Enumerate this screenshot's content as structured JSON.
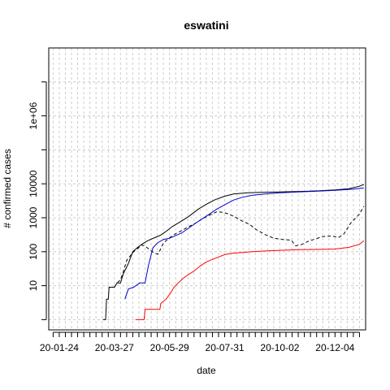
{
  "chart_data": {
    "type": "line",
    "title": "eswatini",
    "xlabel": "date",
    "ylabel": "# confirmed cases",
    "y_scale": "log",
    "ylim": [
      0.5,
      100000000
    ],
    "xlim": [
      "2020-01-12",
      "2021-01-08"
    ],
    "x_tick_labels": [
      "20-01-24",
      "20-03-27",
      "20-05-29",
      "20-07-31",
      "20-10-02",
      "20-12-04"
    ],
    "y_tick_labels": [
      "10",
      "100",
      "1000",
      "10000",
      "1e+06"
    ],
    "grid": true,
    "legend": "none",
    "series": [
      {
        "color": "#000000",
        "dash": "solid",
        "points": [
          [
            "2020-03-14",
            1
          ],
          [
            "2020-03-17",
            1
          ],
          [
            "2020-03-18",
            4
          ],
          [
            "2020-03-20",
            4
          ],
          [
            "2020-03-21",
            9
          ],
          [
            "2020-03-27",
            9
          ],
          [
            "2020-03-30",
            12
          ],
          [
            "2020-04-03",
            12
          ],
          [
            "2020-04-06",
            22
          ],
          [
            "2020-04-12",
            45
          ],
          [
            "2020-04-17",
            100
          ],
          [
            "2020-04-22",
            130
          ],
          [
            "2020-04-28",
            170
          ],
          [
            "2020-05-04",
            210
          ],
          [
            "2020-05-12",
            260
          ],
          [
            "2020-05-18",
            300
          ],
          [
            "2020-05-24",
            380
          ],
          [
            "2020-06-01",
            550
          ],
          [
            "2020-06-10",
            750
          ],
          [
            "2020-06-20",
            1100
          ],
          [
            "2020-07-01",
            1800
          ],
          [
            "2020-07-10",
            2500
          ],
          [
            "2020-07-20",
            3400
          ],
          [
            "2020-07-31",
            4300
          ],
          [
            "2020-08-10",
            5000
          ],
          [
            "2020-08-25",
            5400
          ],
          [
            "2020-09-10",
            5600
          ],
          [
            "2020-10-01",
            5750
          ],
          [
            "2020-10-25",
            5950
          ],
          [
            "2020-11-15",
            6200
          ],
          [
            "2020-12-04",
            6600
          ],
          [
            "2020-12-20",
            7200
          ],
          [
            "2021-01-01",
            8500
          ],
          [
            "2021-01-06",
            9500
          ]
        ]
      },
      {
        "color": "#000000",
        "dash": "dashed",
        "points": [
          [
            "2020-03-27",
            9
          ],
          [
            "2020-03-30",
            12
          ],
          [
            "2020-04-03",
            15
          ],
          [
            "2020-04-06",
            25
          ],
          [
            "2020-04-10",
            55
          ],
          [
            "2020-04-14",
            75
          ],
          [
            "2020-04-18",
            100
          ],
          [
            "2020-04-22",
            120
          ],
          [
            "2020-04-27",
            160
          ],
          [
            "2020-05-02",
            140
          ],
          [
            "2020-05-07",
            110
          ],
          [
            "2020-05-12",
            90
          ],
          [
            "2020-05-16",
            85
          ],
          [
            "2020-05-22",
            180
          ],
          [
            "2020-05-29",
            260
          ],
          [
            "2020-06-05",
            340
          ],
          [
            "2020-06-12",
            420
          ],
          [
            "2020-06-20",
            550
          ],
          [
            "2020-06-28",
            700
          ],
          [
            "2020-07-06",
            950
          ],
          [
            "2020-07-14",
            1200
          ],
          [
            "2020-07-22",
            1500
          ],
          [
            "2020-07-29",
            1450
          ],
          [
            "2020-08-04",
            1300
          ],
          [
            "2020-08-12",
            1050
          ],
          [
            "2020-08-20",
            800
          ],
          [
            "2020-08-28",
            650
          ],
          [
            "2020-09-05",
            450
          ],
          [
            "2020-09-15",
            320
          ],
          [
            "2020-09-25",
            250
          ],
          [
            "2020-10-05",
            230
          ],
          [
            "2020-10-15",
            220
          ],
          [
            "2020-10-20",
            150
          ],
          [
            "2020-10-26",
            160
          ],
          [
            "2020-11-03",
            200
          ],
          [
            "2020-11-12",
            240
          ],
          [
            "2020-11-20",
            280
          ],
          [
            "2020-12-01",
            290
          ],
          [
            "2020-12-08",
            260
          ],
          [
            "2020-12-14",
            330
          ],
          [
            "2020-12-22",
            700
          ],
          [
            "2021-01-01",
            1300
          ],
          [
            "2021-01-06",
            2200
          ]
        ]
      },
      {
        "color": "#0000cc",
        "dash": "solid",
        "points": [
          [
            "2020-04-08",
            4
          ],
          [
            "2020-04-12",
            8
          ],
          [
            "2020-04-18",
            9
          ],
          [
            "2020-04-25",
            12
          ],
          [
            "2020-05-01",
            12
          ],
          [
            "2020-05-05",
            40
          ],
          [
            "2020-05-10",
            130
          ],
          [
            "2020-05-15",
            180
          ],
          [
            "2020-05-22",
            230
          ],
          [
            "2020-05-29",
            250
          ],
          [
            "2020-06-05",
            300
          ],
          [
            "2020-06-12",
            360
          ],
          [
            "2020-06-20",
            500
          ],
          [
            "2020-06-28",
            700
          ],
          [
            "2020-07-06",
            950
          ],
          [
            "2020-07-14",
            1300
          ],
          [
            "2020-07-22",
            1800
          ],
          [
            "2020-07-31",
            2400
          ],
          [
            "2020-08-10",
            3300
          ],
          [
            "2020-08-20",
            4000
          ],
          [
            "2020-09-01",
            4600
          ],
          [
            "2020-09-15",
            5000
          ],
          [
            "2020-10-01",
            5400
          ],
          [
            "2020-10-20",
            5700
          ],
          [
            "2020-11-10",
            6000
          ],
          [
            "2020-12-04",
            6400
          ],
          [
            "2020-12-25",
            7000
          ],
          [
            "2021-01-06",
            7600
          ]
        ]
      },
      {
        "color": "#ff0000",
        "dash": "solid",
        "points": [
          [
            "2020-04-20",
            1
          ],
          [
            "2020-04-30",
            1
          ],
          [
            "2020-05-01",
            2
          ],
          [
            "2020-05-18",
            2
          ],
          [
            "2020-05-19",
            3
          ],
          [
            "2020-05-25",
            4
          ],
          [
            "2020-05-30",
            6
          ],
          [
            "2020-06-03",
            9
          ],
          [
            "2020-06-08",
            12
          ],
          [
            "2020-06-13",
            16
          ],
          [
            "2020-06-18",
            20
          ],
          [
            "2020-06-26",
            27
          ],
          [
            "2020-07-03",
            38
          ],
          [
            "2020-07-10",
            50
          ],
          [
            "2020-07-16",
            58
          ],
          [
            "2020-07-24",
            70
          ],
          [
            "2020-07-31",
            82
          ],
          [
            "2020-08-08",
            90
          ],
          [
            "2020-08-20",
            95
          ],
          [
            "2020-09-01",
            100
          ],
          [
            "2020-09-15",
            105
          ],
          [
            "2020-10-02",
            110
          ],
          [
            "2020-10-25",
            115
          ],
          [
            "2020-11-15",
            117
          ],
          [
            "2020-12-04",
            120
          ],
          [
            "2020-12-20",
            135
          ],
          [
            "2021-01-01",
            165
          ],
          [
            "2021-01-06",
            210
          ]
        ]
      }
    ]
  }
}
